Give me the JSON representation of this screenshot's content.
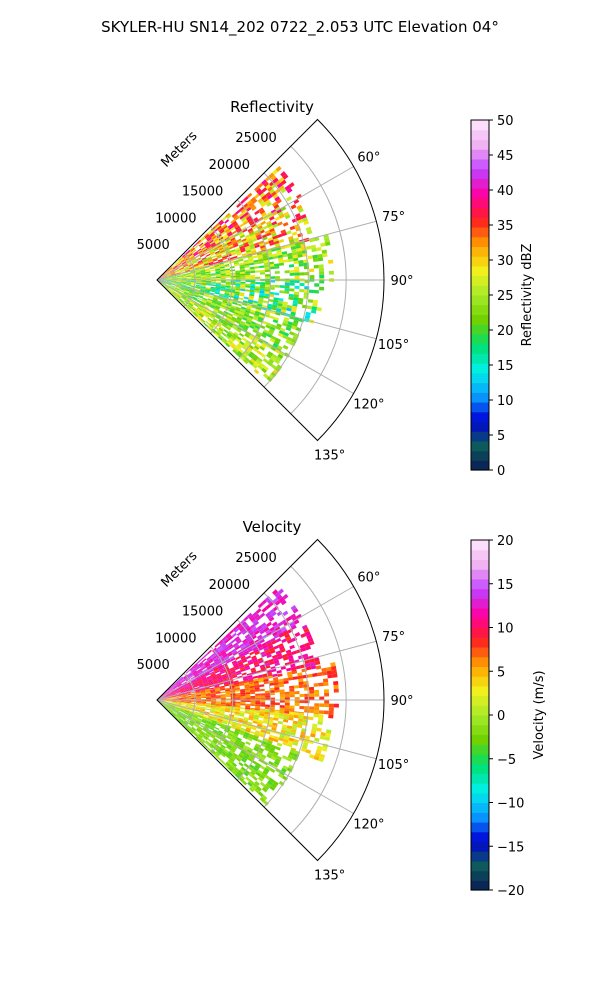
{
  "figure_title": "SKYLER-HU  SN14_202  0722_2.053 UTC Elevation 04°",
  "chart_data": [
    {
      "type": "heatmap",
      "subtype": "polar-sector",
      "title": "Reflectivity",
      "radial_axis_label": "Meters",
      "radial_ticks": [
        "5000",
        "10000",
        "15000",
        "20000",
        "25000"
      ],
      "radial_tick_values": [
        5000,
        10000,
        15000,
        20000,
        25000
      ],
      "rmax": 30000,
      "azimuth_range_deg": [
        45,
        135
      ],
      "azimuth_ticks": [
        "60°",
        "75°",
        "90°",
        "105°",
        "120°",
        "135°"
      ],
      "azimuth_tick_values": [
        60,
        75,
        90,
        105,
        120,
        135
      ],
      "grid": true,
      "colorbar": {
        "label": "Reflectivity dBZ",
        "range": [
          0,
          50
        ],
        "ticks": [
          "0",
          "5",
          "10",
          "15",
          "20",
          "25",
          "30",
          "35",
          "40",
          "45",
          "50"
        ],
        "tick_values": [
          0,
          5,
          10,
          15,
          20,
          25,
          30,
          35,
          40,
          45,
          50
        ],
        "stops": [
          "#0b1b55",
          "#0d5b5b",
          "#0000d8",
          "#0aa0ff",
          "#00f0e8",
          "#00e070",
          "#6fd100",
          "#a6ea2a",
          "#f3f01c",
          "#ffa000",
          "#ff2020",
          "#ff00a0",
          "#c040ff",
          "#f0b0f0",
          "#ffe8ff"
        ]
      },
      "field": {
        "description_values": "dBZ",
        "sectors": [
          {
            "az": [
              47,
              60
            ],
            "r": [
              0,
              22000
            ],
            "value_range": [
              25,
              40
            ],
            "mean": 32
          },
          {
            "az": [
              60,
              75
            ],
            "r": [
              0,
              21000
            ],
            "value_range": [
              22,
              38
            ],
            "mean": 29
          },
          {
            "az": [
              75,
              90
            ],
            "r": [
              0,
              23000
            ],
            "value_range": [
              18,
              30
            ],
            "mean": 24
          },
          {
            "az": [
              90,
              105
            ],
            "r": [
              0,
              22000
            ],
            "value_range": [
              12,
              30
            ],
            "mean": 21
          },
          {
            "az": [
              105,
              120
            ],
            "r": [
              0,
              20000
            ],
            "value_range": [
              18,
              28
            ],
            "mean": 22
          },
          {
            "az": [
              120,
              133
            ],
            "r": [
              0,
              20000
            ],
            "value_range": [
              20,
              30
            ],
            "mean": 25
          }
        ]
      }
    },
    {
      "type": "heatmap",
      "subtype": "polar-sector",
      "title": "Velocity",
      "radial_axis_label": "Meters",
      "radial_ticks": [
        "5000",
        "10000",
        "15000",
        "20000",
        "25000"
      ],
      "radial_tick_values": [
        5000,
        10000,
        15000,
        20000,
        25000
      ],
      "rmax": 30000,
      "azimuth_range_deg": [
        45,
        135
      ],
      "azimuth_ticks": [
        "60°",
        "75°",
        "90°",
        "105°",
        "120°",
        "135°"
      ],
      "azimuth_tick_values": [
        60,
        75,
        90,
        105,
        120,
        135
      ],
      "grid": true,
      "colorbar": {
        "label": "Velocity (m/s)",
        "range": [
          -20,
          20
        ],
        "ticks": [
          "−20",
          "−15",
          "−10",
          "−5",
          "0",
          "5",
          "10",
          "15",
          "20"
        ],
        "tick_values": [
          -20,
          -15,
          -10,
          -5,
          0,
          5,
          10,
          15,
          20
        ],
        "stops": [
          "#0b1b55",
          "#0d5b5b",
          "#0000d8",
          "#0aa0ff",
          "#00f0e8",
          "#00e070",
          "#6fd100",
          "#a6ea2a",
          "#f3f01c",
          "#ffa000",
          "#ff2020",
          "#ff00a0",
          "#c040ff",
          "#f0b0f0",
          "#ffe8ff"
        ]
      },
      "field": {
        "description_values": "m/s",
        "sectors": [
          {
            "az": [
              47,
              62
            ],
            "r": [
              0,
              22000
            ],
            "value_range": [
              11,
              15
            ],
            "mean": 13
          },
          {
            "az": [
              62,
              78
            ],
            "r": [
              0,
              22000
            ],
            "value_range": [
              8,
              13
            ],
            "mean": 10
          },
          {
            "az": [
              78,
              95
            ],
            "r": [
              0,
              24000
            ],
            "value_range": [
              5,
              9
            ],
            "mean": 7
          },
          {
            "az": [
              95,
              110
            ],
            "r": [
              0,
              23000
            ],
            "value_range": [
              0,
              6
            ],
            "mean": 2
          },
          {
            "az": [
              110,
              133
            ],
            "r": [
              0,
              20000
            ],
            "value_range": [
              -4,
              0
            ],
            "mean": -2
          }
        ]
      }
    }
  ]
}
